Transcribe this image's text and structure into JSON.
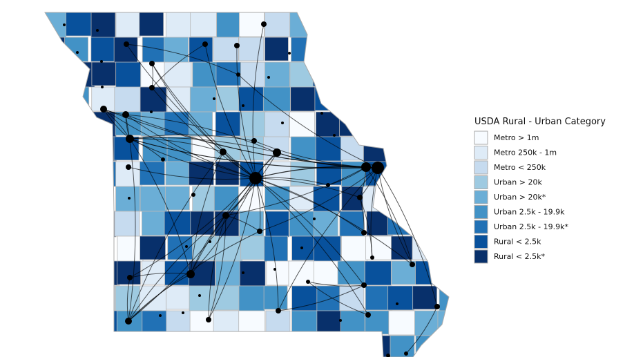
{
  "legend": {
    "title": "USDA Rural - Urban Category",
    "items": [
      {
        "label": "Metro > 1m",
        "color": "#f7fbff"
      },
      {
        "label": "Metro 250k - 1m",
        "color": "#deebf7"
      },
      {
        "label": "Metro < 250k",
        "color": "#c6dbef"
      },
      {
        "label": "Urban > 20k",
        "color": "#9ecae1"
      },
      {
        "label": "Urban > 20k*",
        "color": "#6baed6"
      },
      {
        "label": "Urban 2.5k - 19.9k",
        "color": "#4292c6"
      },
      {
        "label": "Urban 2.5k - 19.9k*",
        "color": "#2171b5"
      },
      {
        "label": "Rural < 2.5k",
        "color": "#08519c"
      },
      {
        "label": "Rural < 2.5k*",
        "color": "#08306b"
      }
    ]
  }
}
